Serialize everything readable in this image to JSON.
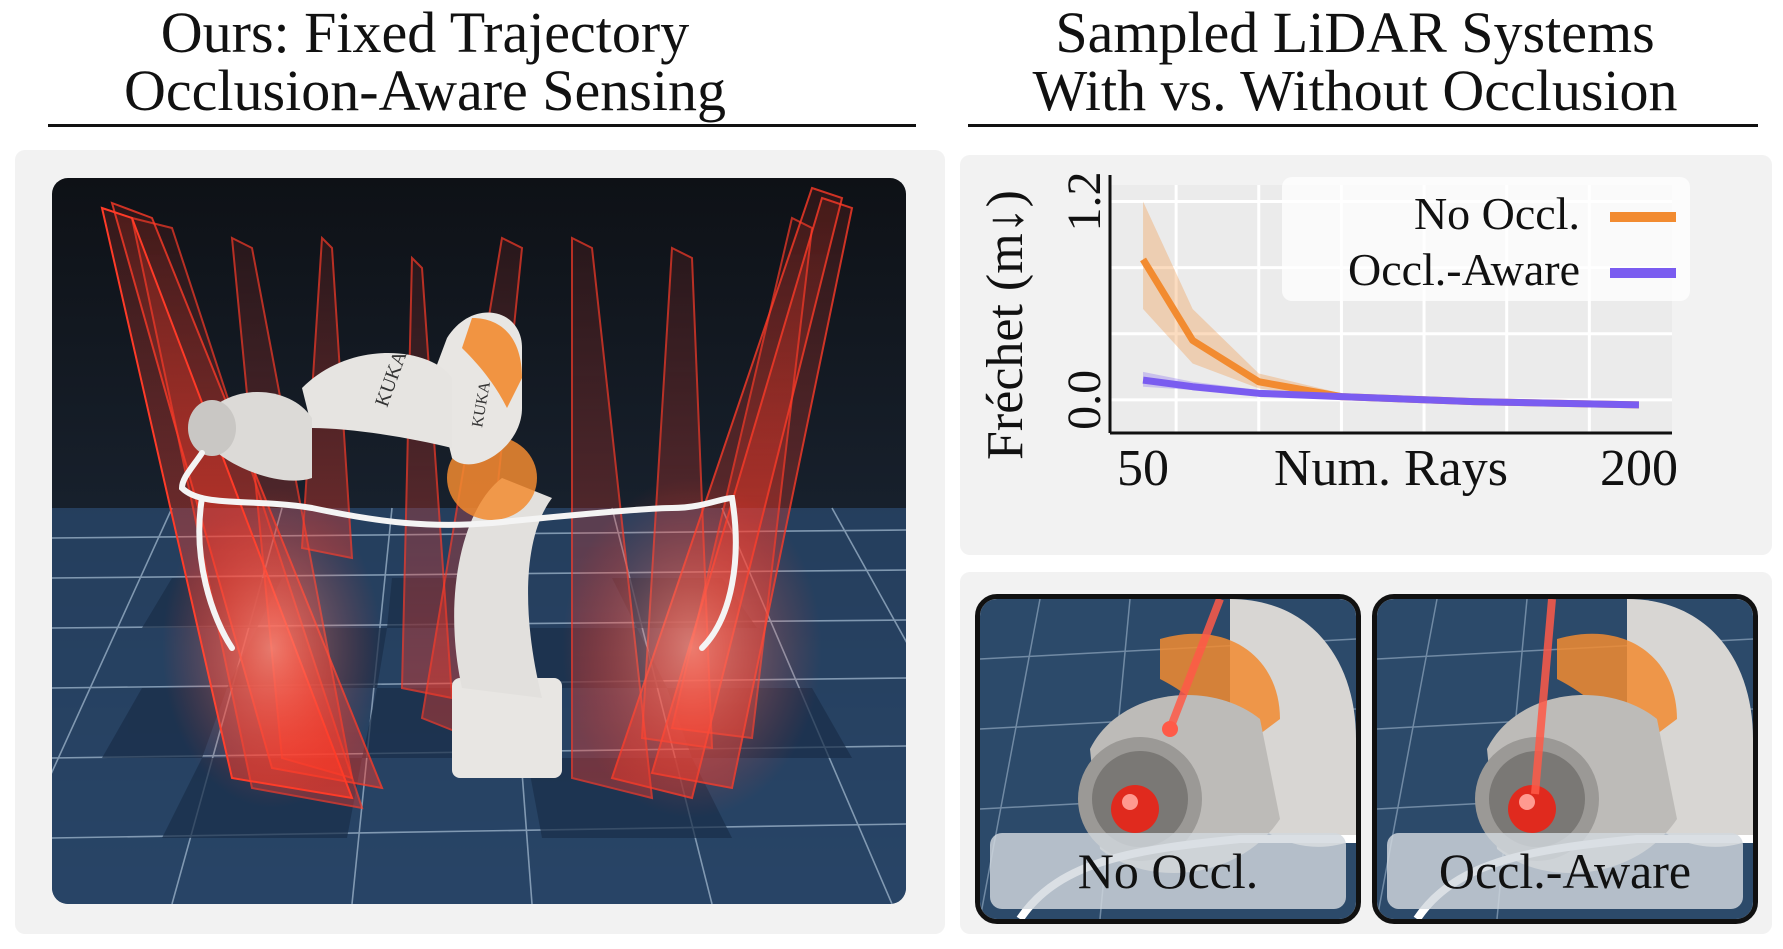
{
  "left": {
    "title_line1": "Ours: Fixed Trajectory",
    "title_line2": "Occlusion-Aware Sensing",
    "robot_logo": "KUKA"
  },
  "right": {
    "title_line1": "Sampled LiDAR Systems",
    "title_line2": "With vs. Without Occlusion",
    "thumb_left_label": "No Occl.",
    "thumb_right_label": "Occl.-Aware"
  },
  "colors": {
    "no_occl": "#f28b30",
    "occl_aware": "#7a5cf0",
    "beam": "#ff3b28",
    "floor_dark": "#1e3350",
    "floor_light": "#3f6a92"
  },
  "chart_data": {
    "type": "line",
    "ylabel": "Fréchet (m↓)",
    "xlabel": "Num. Rays",
    "xticks": [
      "50",
      "200"
    ],
    "yticks": [
      "0.0",
      "1.2"
    ],
    "ylim": [
      -0.2,
      1.3
    ],
    "xlim": [
      40,
      210
    ],
    "grid": true,
    "legend_position": "top-right",
    "series": [
      {
        "name": "No Occl.",
        "color": "#f28b30",
        "x": [
          50,
          65,
          85,
          110,
          150,
          200
        ],
        "y": [
          0.85,
          0.36,
          0.11,
          0.02,
          -0.01,
          -0.03
        ],
        "lower": [
          0.55,
          0.22,
          0.07,
          0.0,
          -0.02,
          -0.04
        ],
        "upper": [
          1.2,
          0.55,
          0.16,
          0.04,
          0.0,
          -0.02
        ]
      },
      {
        "name": "Occl.-Aware",
        "color": "#7a5cf0",
        "x": [
          50,
          65,
          85,
          110,
          150,
          200
        ],
        "y": [
          0.12,
          0.08,
          0.04,
          0.02,
          -0.01,
          -0.03
        ],
        "lower": [
          0.08,
          0.06,
          0.03,
          0.01,
          -0.02,
          -0.04
        ],
        "upper": [
          0.17,
          0.11,
          0.06,
          0.03,
          0.0,
          -0.02
        ]
      }
    ]
  }
}
